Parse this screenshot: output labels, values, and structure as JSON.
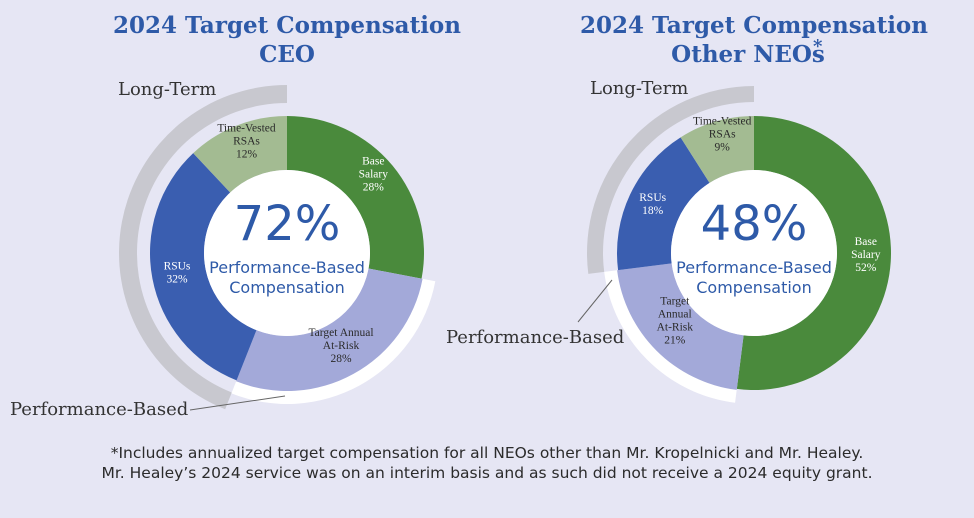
{
  "chart_data": [
    {
      "type": "pie",
      "title": "2024 Target Compensation",
      "subtitle": "CEO",
      "title_star": "",
      "center_value": "72%",
      "center_text": [
        "Performance-Based",
        "Compensation"
      ],
      "outer_labels": {
        "long_term": "Long-Term",
        "performance": "Performance-Based"
      },
      "outer_arcs": {
        "long_term_pct": 44,
        "performance_pct": 28
      },
      "slices": [
        {
          "name": "Base Salary",
          "label_lines": [
            "Base",
            "Salary",
            "28%"
          ],
          "value": 28,
          "color": "#4a8a3c"
        },
        {
          "name": "Target Annual At-Risk",
          "label_lines": [
            "Target Annual",
            "At-Risk",
            "28%"
          ],
          "value": 28,
          "color": "#a3a9d9"
        },
        {
          "name": "RSUs",
          "label_lines": [
            "RSUs",
            "32%"
          ],
          "value": 32,
          "color": "#3a5eb0"
        },
        {
          "name": "Time-Vested RSAs",
          "label_lines": [
            "Time-Vested",
            "RSAs",
            "12%"
          ],
          "value": 12,
          "color": "#a3bb92"
        }
      ]
    },
    {
      "type": "pie",
      "title": "2024 Target Compensation",
      "subtitle": "Other NEOs",
      "title_star": "*",
      "center_value": "48%",
      "center_text": [
        "Performance-Based",
        "Compensation"
      ],
      "outer_labels": {
        "long_term": "Long-Term",
        "performance": "Performance-Based"
      },
      "outer_arcs": {
        "long_term_pct": 27,
        "performance_pct": 21
      },
      "slices": [
        {
          "name": "Base Salary",
          "label_lines": [
            "Base",
            "Salary",
            "52%"
          ],
          "value": 52,
          "color": "#4a8a3c"
        },
        {
          "name": "Target Annual At-Risk",
          "label_lines": [
            "Target",
            "Annual",
            "At-Risk",
            "21%"
          ],
          "value": 21,
          "color": "#a3a9d9"
        },
        {
          "name": "RSUs",
          "label_lines": [
            "RSUs",
            "18%"
          ],
          "value": 18,
          "color": "#3a5eb0"
        },
        {
          "name": "Time-Vested RSAs",
          "label_lines": [
            "Time-Vested",
            "RSAs",
            "9%"
          ],
          "value": 9,
          "color": "#a3bb92"
        }
      ]
    }
  ],
  "colors": {
    "long_term_arc": "#c8c8cf",
    "performance_arc": "#ffffff",
    "accent": "#2e5aa8"
  },
  "footnote": [
    "*Includes annualized target compensation for all NEOs other than Mr. Kropelnicki and Mr. Healey.",
    "Mr. Healey’s 2024 service was on an interim basis and as such did not receive a 2024 equity grant."
  ]
}
